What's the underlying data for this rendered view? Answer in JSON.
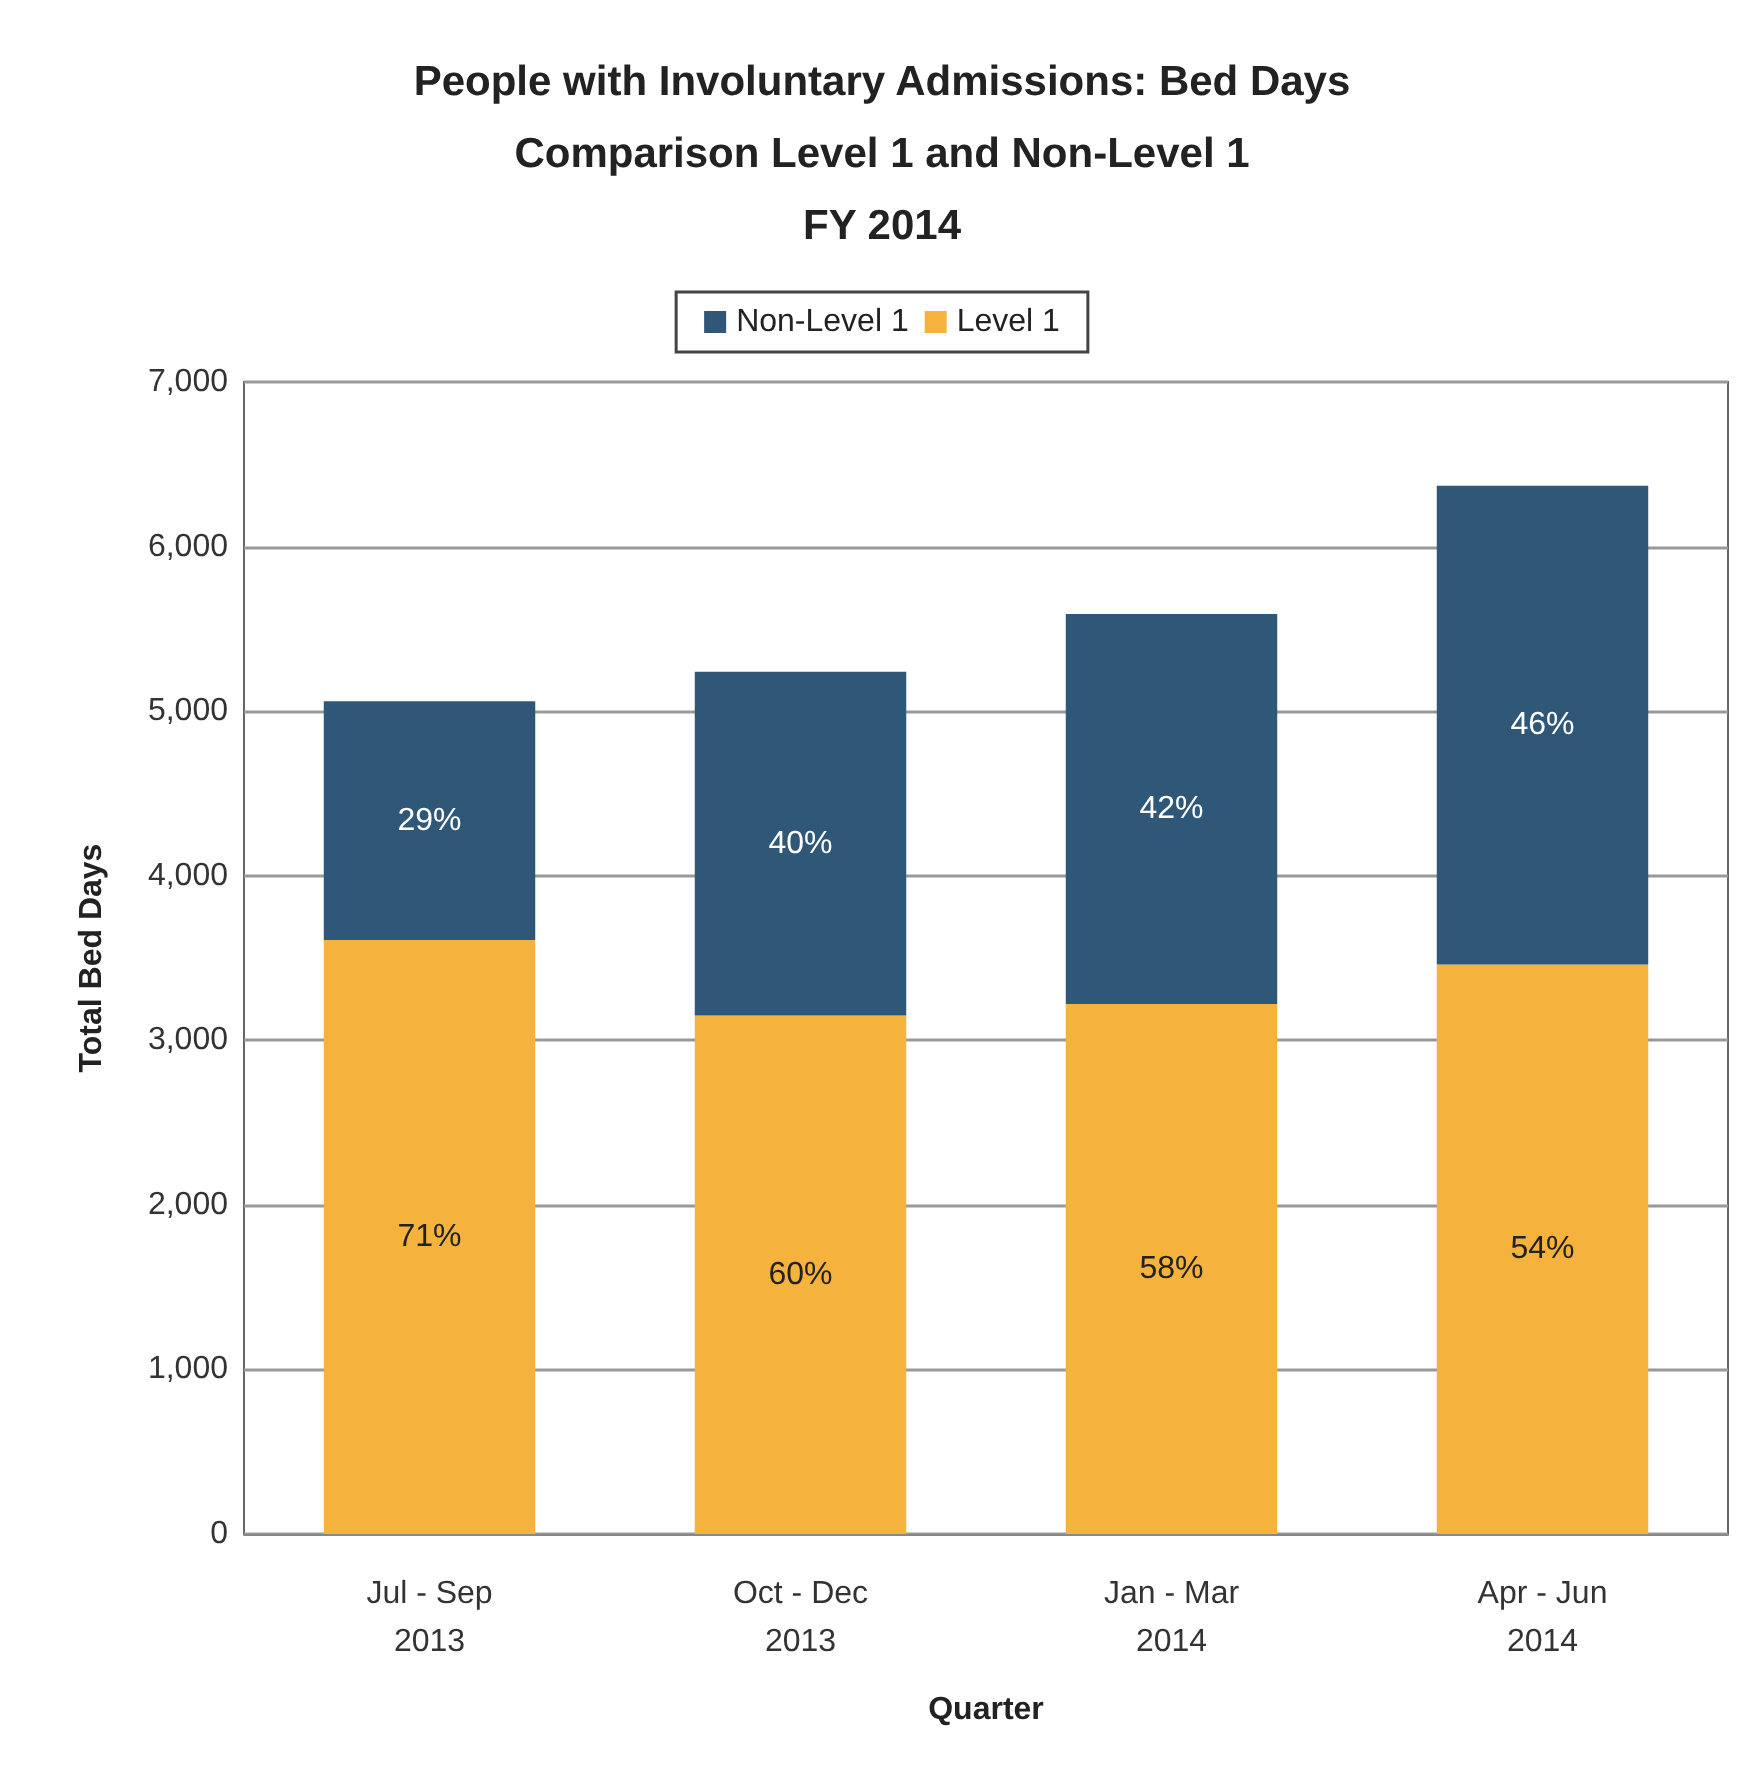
{
  "chart_data": {
    "type": "bar",
    "title": "People with Involuntary Admissions: Bed Days\nComparison Level 1 and Non-Level 1\nFY 2014",
    "categories": [
      "Jul - Sep\n2013",
      "Oct - Dec\n2013",
      "Jan - Mar\n2014",
      "Apr - Jun\n2014"
    ],
    "series": [
      {
        "name": "Level 1",
        "color": "#f5b23c",
        "values": [
          3610,
          3150,
          3220,
          3460
        ]
      },
      {
        "name": "Non-Level 1",
        "color": "#2f5777",
        "values": [
          1450,
          2090,
          2370,
          2910
        ]
      }
    ],
    "annotations": [
      "71%",
      "60%",
      "58%",
      "54%",
      "29%",
      "40%",
      "42%",
      "46%"
    ],
    "stacked": true,
    "xlabel": "Quarter",
    "ylabel": "Total Bed Days",
    "ylim": [
      0,
      7000
    ],
    "yticks": [
      0,
      {
        "value": 1000,
        "label": "1,000"
      },
      {
        "value": 2000,
        "label": "2,000"
      },
      {
        "value": 3000,
        "label": "3,000"
      },
      {
        "value": 4000,
        "label": "4,000"
      },
      {
        "value": 5000,
        "label": "5,000"
      },
      {
        "value": 6000,
        "label": "6,000"
      },
      {
        "value": 7000,
        "label": "7,000"
      }
    ],
    "grid": "y",
    "legend": "top"
  }
}
